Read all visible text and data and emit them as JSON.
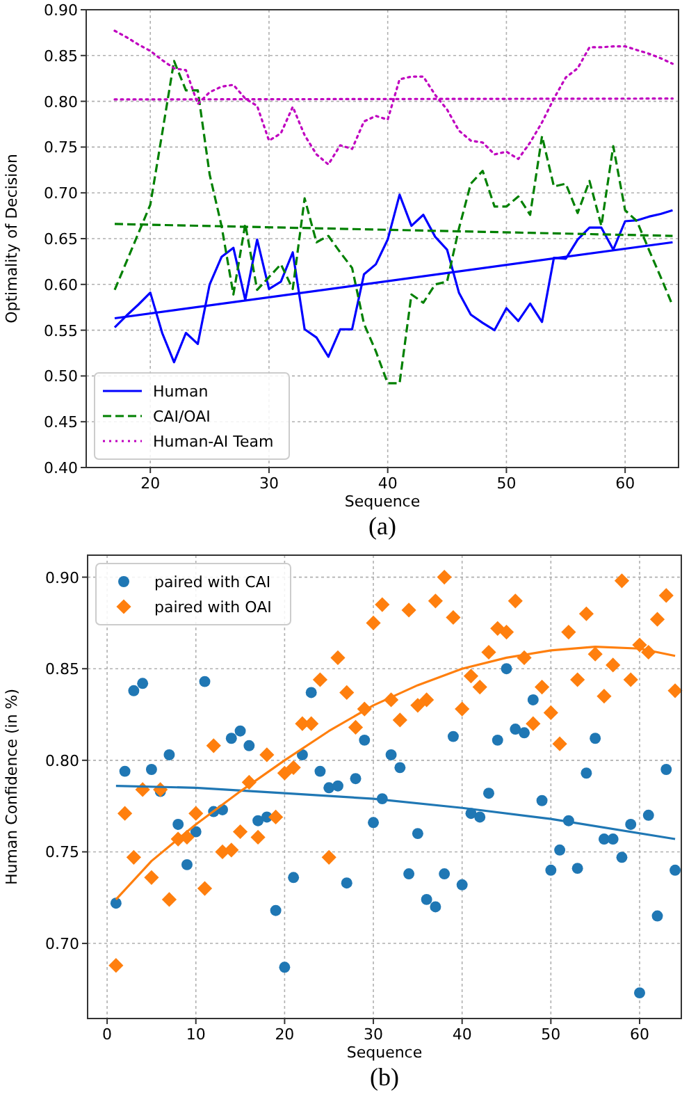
{
  "chart_data": [
    {
      "type": "line",
      "xlabel": "Sequence",
      "ylabel": "Optimality of Decision",
      "annotations": [
        "(a)"
      ],
      "xlim": [
        14.6,
        64.5
      ],
      "ylim": [
        0.4,
        0.9
      ],
      "xticks": [
        20,
        30,
        40,
        50,
        60
      ],
      "yticks": [
        {
          "value": 0.4,
          "label": "0.40"
        },
        {
          "value": 0.45,
          "label": "0.45"
        },
        {
          "value": 0.5,
          "label": "0.50"
        },
        {
          "value": 0.55,
          "label": "0.55"
        },
        {
          "value": 0.6,
          "label": "0.60"
        },
        {
          "value": 0.65,
          "label": "0.65"
        },
        {
          "value": 0.7,
          "label": "0.70"
        },
        {
          "value": 0.75,
          "label": "0.75"
        },
        {
          "value": 0.8,
          "label": "0.80"
        },
        {
          "value": 0.85,
          "label": "0.85"
        },
        {
          "value": 0.9,
          "label": "0.90"
        }
      ],
      "grid": true,
      "legend": "bottom left",
      "x": [
        17,
        18,
        19,
        20,
        21,
        22,
        23,
        24,
        25,
        26,
        27,
        28,
        29,
        30,
        31,
        32,
        33,
        34,
        35,
        36,
        37,
        38,
        39,
        40,
        41,
        42,
        43,
        44,
        45,
        46,
        47,
        48,
        49,
        50,
        51,
        52,
        53,
        54,
        55,
        56,
        57,
        58,
        59,
        60,
        61,
        62,
        63,
        64
      ],
      "series": [
        {
          "name": "Human",
          "color": "#0000ff",
          "line_style": "solid",
          "values": [
            0.553,
            0.566,
            0.578,
            0.591,
            0.547,
            0.515,
            0.547,
            0.535,
            0.6,
            0.63,
            0.64,
            0.583,
            0.649,
            0.595,
            0.603,
            0.635,
            0.551,
            0.542,
            0.521,
            0.551,
            0.551,
            0.611,
            0.622,
            0.649,
            0.698,
            0.664,
            0.676,
            0.652,
            0.638,
            0.591,
            0.567,
            0.558,
            0.55,
            0.574,
            0.56,
            0.579,
            0.559,
            0.629,
            0.628,
            0.649,
            0.662,
            0.662,
            0.638,
            0.669,
            0.67,
            0.674,
            0.677,
            0.681
          ]
        },
        {
          "name": "CAI/OAI",
          "color": "#008000",
          "line_style": "dashed",
          "values": [
            0.594,
            0.625,
            0.656,
            0.687,
            0.765,
            0.844,
            0.812,
            0.812,
            0.72,
            0.664,
            0.589,
            0.666,
            0.594,
            0.608,
            0.622,
            0.595,
            0.694,
            0.646,
            0.653,
            0.635,
            0.618,
            0.557,
            0.527,
            0.492,
            0.492,
            0.589,
            0.58,
            0.6,
            0.603,
            0.661,
            0.71,
            0.724,
            0.685,
            0.685,
            0.696,
            0.676,
            0.762,
            0.707,
            0.71,
            0.678,
            0.713,
            0.664,
            0.751,
            0.681,
            0.669,
            0.638,
            0.608,
            0.577
          ]
        },
        {
          "name": "Human-AI Team",
          "color": "#bf00bf",
          "line_style": "dotted",
          "values": [
            0.877,
            0.87,
            0.862,
            0.855,
            0.845,
            0.836,
            0.834,
            0.797,
            0.81,
            0.816,
            0.818,
            0.803,
            0.795,
            0.757,
            0.765,
            0.794,
            0.763,
            0.742,
            0.731,
            0.752,
            0.748,
            0.778,
            0.784,
            0.78,
            0.824,
            0.827,
            0.827,
            0.807,
            0.791,
            0.768,
            0.757,
            0.755,
            0.742,
            0.745,
            0.737,
            0.755,
            0.777,
            0.803,
            0.826,
            0.836,
            0.859,
            0.859,
            0.86,
            0.86,
            0.856,
            0.852,
            0.847,
            0.841
          ]
        },
        {
          "type": "line",
          "color": "#0000ff",
          "line_style": "solid",
          "x": [
            17,
            64
          ],
          "values": [
            0.563,
            0.646
          ]
        },
        {
          "type": "line",
          "color": "#008000",
          "line_style": "dashed",
          "x": [
            17,
            64
          ],
          "values": [
            0.666,
            0.653
          ]
        },
        {
          "type": "line",
          "color": "#bf00bf",
          "line_style": "dotted",
          "x": [
            17,
            64
          ],
          "values": [
            0.802,
            0.803
          ]
        }
      ]
    },
    {
      "type": "scatter",
      "xlabel": "Sequence",
      "ylabel": "Human Confidence (in %)",
      "annotations": [
        "(b)"
      ],
      "xlim": [
        -2.2,
        64.7
      ],
      "ylim": [
        0.659,
        0.912
      ],
      "xticks": [
        0,
        10,
        20,
        30,
        40,
        50,
        60
      ],
      "yticks": [
        {
          "value": 0.7,
          "label": "0.70"
        },
        {
          "value": 0.75,
          "label": "0.75"
        },
        {
          "value": 0.8,
          "label": "0.80"
        },
        {
          "value": 0.85,
          "label": "0.85"
        },
        {
          "value": 0.9,
          "label": "0.90"
        }
      ],
      "grid": true,
      "legend": "top left",
      "x": [
        1,
        2,
        3,
        4,
        5,
        6,
        7,
        8,
        9,
        10,
        11,
        12,
        13,
        14,
        15,
        16,
        17,
        18,
        19,
        20,
        21,
        22,
        23,
        24,
        25,
        26,
        27,
        28,
        29,
        30,
        31,
        32,
        33,
        34,
        35,
        36,
        37,
        38,
        39,
        40,
        41,
        42,
        43,
        44,
        45,
        46,
        47,
        48,
        49,
        50,
        51,
        52,
        53,
        54,
        55,
        56,
        57,
        58,
        59,
        60,
        61,
        62,
        63,
        64
      ],
      "series": [
        {
          "name": "paired with CAI",
          "color": "#1f77b4",
          "marker": "circle",
          "values": [
            0.722,
            0.794,
            0.838,
            0.842,
            0.795,
            0.783,
            0.803,
            0.765,
            0.743,
            0.761,
            0.843,
            0.772,
            0.773,
            0.812,
            0.816,
            0.808,
            0.767,
            0.769,
            0.718,
            0.687,
            0.736,
            0.803,
            0.837,
            0.794,
            0.785,
            0.786,
            0.733,
            0.79,
            0.811,
            0.766,
            0.779,
            0.803,
            0.796,
            0.738,
            0.76,
            0.724,
            0.72,
            0.738,
            0.813,
            0.732,
            0.771,
            0.769,
            0.782,
            0.811,
            0.85,
            0.817,
            0.815,
            0.833,
            0.778,
            0.74,
            0.751,
            0.767,
            0.741,
            0.793,
            0.812,
            0.757,
            0.757,
            0.747,
            0.765,
            0.673,
            0.77,
            0.715,
            0.795,
            0.74
          ]
        },
        {
          "name": "paired with OAI",
          "color": "#ff7f0e",
          "marker": "diamond",
          "values": [
            0.688,
            0.771,
            0.747,
            0.784,
            0.736,
            0.784,
            0.724,
            0.757,
            0.758,
            0.771,
            0.73,
            0.808,
            0.75,
            0.751,
            0.761,
            0.788,
            0.758,
            0.803,
            0.769,
            0.793,
            0.796,
            0.82,
            0.82,
            0.844,
            0.747,
            0.856,
            0.837,
            0.818,
            0.828,
            0.875,
            0.885,
            0.833,
            0.822,
            0.882,
            0.83,
            0.833,
            0.887,
            0.9,
            0.878,
            0.828,
            0.846,
            0.84,
            0.859,
            0.872,
            0.87,
            0.887,
            0.856,
            0.82,
            0.84,
            0.826,
            0.809,
            0.87,
            0.844,
            0.88,
            0.858,
            0.835,
            0.852,
            0.898,
            0.844,
            0.863,
            0.859,
            0.877,
            0.89,
            0.838
          ]
        },
        {
          "type": "line",
          "color": "#1f77b4",
          "x": [
            1,
            10,
            20,
            30,
            40,
            50,
            64
          ],
          "values": [
            0.786,
            0.785,
            0.782,
            0.779,
            0.774,
            0.768,
            0.757
          ]
        },
        {
          "type": "line",
          "color": "#ff7f0e",
          "x": [
            1,
            5,
            10,
            15,
            20,
            25,
            30,
            35,
            40,
            45,
            50,
            55,
            60,
            64
          ],
          "values": [
            0.724,
            0.745,
            0.765,
            0.783,
            0.8,
            0.816,
            0.83,
            0.841,
            0.85,
            0.856,
            0.86,
            0.862,
            0.861,
            0.857
          ]
        }
      ]
    }
  ]
}
